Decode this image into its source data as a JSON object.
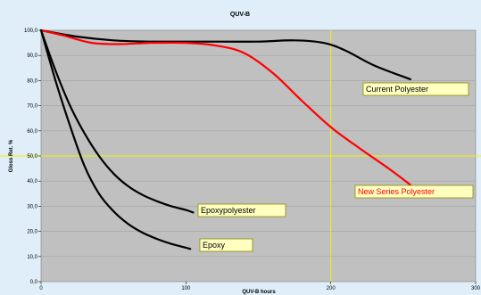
{
  "chart_data": {
    "type": "line",
    "title": "QUV-B",
    "xlabel": "QUV-B hours",
    "ylabel": "Gloss Ret. %",
    "xlim": [
      0,
      300
    ],
    "ylim": [
      0,
      100
    ],
    "x_ticks": [
      "0",
      "100",
      "200",
      "300"
    ],
    "y_ticks": [
      "0,0",
      "10,0",
      "20,0",
      "30,0",
      "40,0",
      "50,0",
      "60,0",
      "70,0",
      "80,0",
      "90,0",
      "100,0"
    ],
    "grid": true,
    "colors": {
      "plot_background": "#c0c0c0",
      "page_background": "#dfeef8",
      "gridline": "#a6a6a6",
      "reference_line": "#f2f200",
      "callout_fill": "#ffffc0",
      "callout_border": "#8c8c00"
    },
    "reference_lines": [
      {
        "axis": "x",
        "value": 200
      },
      {
        "axis": "y",
        "value": 50
      }
    ],
    "series": [
      {
        "name": "Current Polyester",
        "color": "#000000",
        "label_color": "#000000",
        "points": [
          [
            0,
            100
          ],
          [
            25,
            97.5
          ],
          [
            50,
            96
          ],
          [
            75,
            95.5
          ],
          [
            100,
            95.5
          ],
          [
            125,
            95.5
          ],
          [
            150,
            95.5
          ],
          [
            175,
            96
          ],
          [
            195,
            95
          ],
          [
            210,
            92
          ],
          [
            230,
            86
          ],
          [
            255,
            80.5
          ]
        ]
      },
      {
        "name": "New Series Polyester",
        "color": "#ff0000",
        "label_color": "#ff0000",
        "points": [
          [
            0,
            100
          ],
          [
            15,
            98
          ],
          [
            35,
            95
          ],
          [
            55,
            94.5
          ],
          [
            75,
            95
          ],
          [
            100,
            95
          ],
          [
            120,
            94
          ],
          [
            140,
            91
          ],
          [
            160,
            83
          ],
          [
            180,
            72
          ],
          [
            200,
            61.5
          ],
          [
            220,
            53
          ],
          [
            240,
            45
          ],
          [
            255,
            38.5
          ]
        ]
      },
      {
        "name": "Epoxypolyester",
        "color": "#000000",
        "label_color": "#000000",
        "points": [
          [
            0,
            100
          ],
          [
            10,
            84
          ],
          [
            20,
            70
          ],
          [
            30,
            59
          ],
          [
            40,
            50
          ],
          [
            50,
            43
          ],
          [
            60,
            38
          ],
          [
            70,
            34.5
          ],
          [
            80,
            32
          ],
          [
            90,
            30
          ],
          [
            100,
            28.5
          ],
          [
            105,
            27.5
          ]
        ]
      },
      {
        "name": "Epoxy",
        "color": "#000000",
        "label_color": "#000000",
        "points": [
          [
            0,
            100
          ],
          [
            10,
            80
          ],
          [
            20,
            62
          ],
          [
            30,
            46
          ],
          [
            40,
            35
          ],
          [
            50,
            28
          ],
          [
            60,
            23
          ],
          [
            70,
            19.5
          ],
          [
            80,
            17
          ],
          [
            90,
            15
          ],
          [
            100,
            13.5
          ],
          [
            103,
            13
          ]
        ]
      }
    ]
  }
}
